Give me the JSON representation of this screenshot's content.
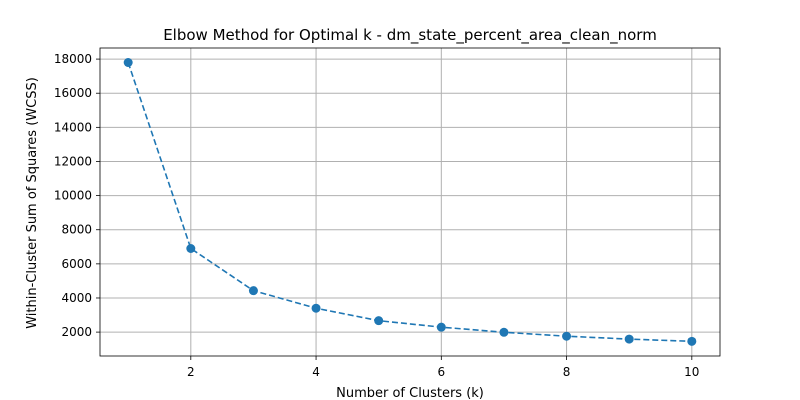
{
  "chart_data": {
    "type": "line",
    "title": "Elbow Method for Optimal k - dm_state_percent_area_clean_norm",
    "xlabel": "Number of Clusters (k)",
    "ylabel": "Within-Cluster Sum of Squares (WCSS)",
    "x": [
      1,
      2,
      3,
      4,
      5,
      6,
      7,
      8,
      9,
      10
    ],
    "series": [
      {
        "values": [
          17800,
          6900,
          4430,
          3400,
          2670,
          2290,
          1990,
          1760,
          1590,
          1460
        ]
      }
    ],
    "xlim": [
      0.55,
      10.45
    ],
    "ylim": [
      600,
      18650
    ],
    "xticks": [
      2,
      4,
      6,
      8,
      10
    ],
    "yticks": [
      2000,
      4000,
      6000,
      8000,
      10000,
      12000,
      14000,
      16000,
      18000
    ],
    "grid": true,
    "line_style": "dashed",
    "marker": "circle",
    "colors": {
      "series": "#1f77b4",
      "grid": "#b0b0b0",
      "axis": "#000000"
    }
  }
}
